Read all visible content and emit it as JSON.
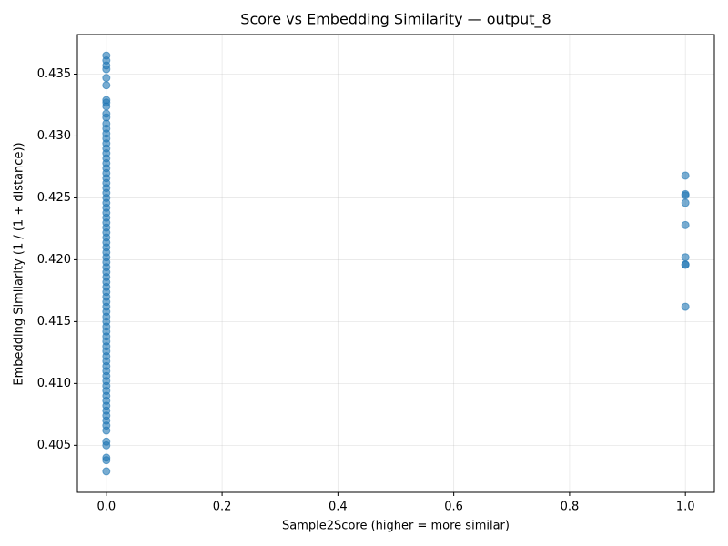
{
  "chart_data": {
    "type": "scatter",
    "title": "Score vs Embedding Similarity — output_8",
    "xlabel": "Sample2Score (higher = more similar)",
    "ylabel": "Embedding Similarity (1 / (1 + distance))",
    "color": "#1f77b4",
    "grid": true,
    "xlim": [
      -0.05,
      1.05
    ],
    "ylim": [
      0.4012,
      0.4382
    ],
    "xticks": [
      {
        "value": 0,
        "label": "0.0"
      },
      {
        "value": 0.2,
        "label": "0.2"
      },
      {
        "value": 0.4,
        "label": "0.4"
      },
      {
        "value": 0.6,
        "label": "0.6"
      },
      {
        "value": 0.8,
        "label": "0.8"
      },
      {
        "value": 1,
        "label": "1.0"
      }
    ],
    "yticks": [
      0.405,
      {
        "value": 0.41,
        "label": "0.410"
      },
      0.415,
      {
        "value": 0.42,
        "label": "0.420"
      },
      0.425,
      {
        "value": 0.43,
        "label": "0.430"
      },
      0.435
    ],
    "x": [
      0,
      0,
      0,
      0,
      0,
      0,
      0,
      0,
      0,
      0,
      0,
      0,
      0,
      0,
      0,
      0,
      0,
      0,
      0,
      0,
      0,
      0,
      0,
      0,
      0,
      0,
      0,
      0,
      0,
      0,
      0,
      0,
      0,
      0,
      0,
      0,
      0,
      0,
      0,
      0,
      0,
      0,
      0,
      0,
      0,
      0,
      0,
      0,
      0,
      0,
      0,
      0,
      0,
      0,
      0,
      0,
      0,
      0,
      0,
      0,
      0,
      0,
      0,
      0,
      0,
      0,
      0,
      0,
      0,
      0,
      0,
      0,
      0,
      0,
      0,
      0,
      0,
      0,
      0,
      1,
      1,
      1,
      1,
      1,
      1,
      1,
      1,
      1
    ],
    "values": [
      0.4365,
      0.4361,
      0.4357,
      0.4354,
      0.4347,
      0.4341,
      0.4329,
      0.4327,
      0.4324,
      0.4318,
      0.4315,
      0.431,
      0.4306,
      0.4302,
      0.4298,
      0.4294,
      0.429,
      0.4286,
      0.4282,
      0.4278,
      0.4274,
      0.427,
      0.4266,
      0.4262,
      0.4258,
      0.4254,
      0.425,
      0.4246,
      0.4242,
      0.4238,
      0.4234,
      0.423,
      0.4226,
      0.4222,
      0.4218,
      0.4214,
      0.421,
      0.4206,
      0.4202,
      0.4198,
      0.4194,
      0.419,
      0.4186,
      0.4182,
      0.4178,
      0.4174,
      0.417,
      0.4166,
      0.4162,
      0.4158,
      0.4154,
      0.415,
      0.4146,
      0.4142,
      0.4138,
      0.4134,
      0.413,
      0.4126,
      0.4122,
      0.4118,
      0.4114,
      0.411,
      0.4106,
      0.4102,
      0.4098,
      0.4094,
      0.409,
      0.4086,
      0.4082,
      0.4078,
      0.4074,
      0.407,
      0.4066,
      0.4062,
      0.4053,
      0.405,
      0.404,
      0.4038,
      0.4029,
      0.4268,
      0.4253,
      0.4252,
      0.4246,
      0.4228,
      0.4202,
      0.4196,
      0.4196,
      0.4162
    ]
  }
}
